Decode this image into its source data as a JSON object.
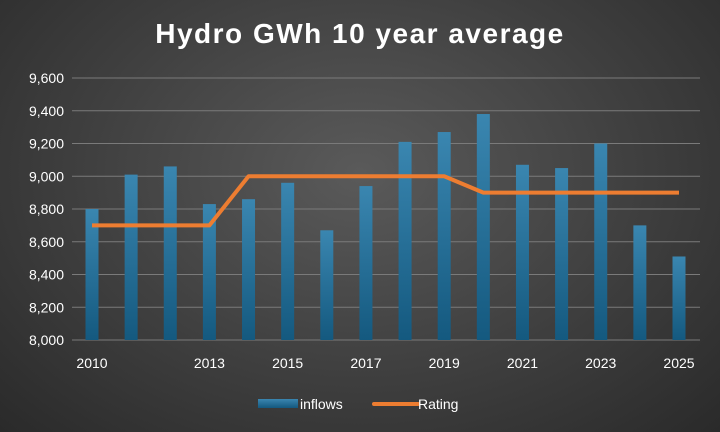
{
  "chart_data": {
    "type": "bar",
    "title": "Hydro GWh 10 year average",
    "x": [
      2010,
      2011,
      2012,
      2013,
      2014,
      2015,
      2016,
      2017,
      2018,
      2019,
      2020,
      2021,
      2022,
      2023,
      2024,
      2025
    ],
    "x_tick_labels": [
      "2010",
      "2013",
      "2015",
      "2017",
      "2019",
      "2021",
      "2023",
      "2025"
    ],
    "x_tick_values": [
      2010,
      2013,
      2015,
      2017,
      2019,
      2021,
      2023,
      2025
    ],
    "ylim": [
      8000,
      9600
    ],
    "y_ticks": [
      "8,000",
      "8,200",
      "8,400",
      "8,600",
      "8,800",
      "9,000",
      "9,200",
      "9,400",
      "9,600"
    ],
    "y_tick_values": [
      8000,
      8200,
      8400,
      8600,
      8800,
      9000,
      9200,
      9400,
      9600
    ],
    "grid": true,
    "legend_position": "bottom",
    "series": [
      {
        "name": "inflows",
        "type": "bar",
        "color": "#1f6f97",
        "values": [
          8800,
          9010,
          9060,
          8830,
          8860,
          8960,
          8670,
          8940,
          9210,
          9270,
          9380,
          9070,
          9050,
          9200,
          8700,
          8510
        ]
      },
      {
        "name": "Rating",
        "type": "line",
        "color": "#ed7d31",
        "values": [
          8700,
          8700,
          8700,
          8700,
          9000,
          9000,
          9000,
          9000,
          9000,
          9000,
          8900,
          8900,
          8900,
          8900,
          8900,
          8900
        ]
      }
    ]
  }
}
